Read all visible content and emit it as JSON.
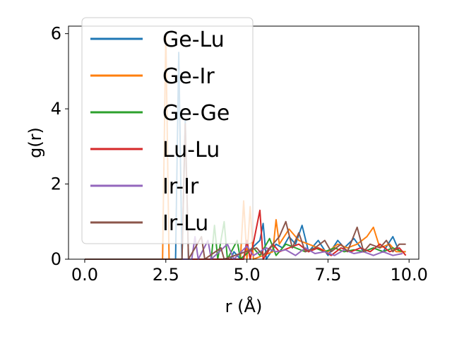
{
  "chart_data": {
    "type": "line",
    "xlabel": "r (Å)",
    "ylabel": "g(r)",
    "xlim": [
      -0.5,
      10.3
    ],
    "ylim": [
      0,
      6.2
    ],
    "xticks": [
      0.0,
      2.5,
      5.0,
      7.5,
      10.0
    ],
    "xtick_labels": [
      "0.0",
      "2.5",
      "5.0",
      "7.5",
      "10.0"
    ],
    "yticks": [
      0,
      2,
      4,
      6
    ],
    "ytick_labels": [
      "0",
      "2",
      "4",
      "6"
    ],
    "grid": false,
    "legend_position": "upper-left",
    "series": [
      {
        "name": "Ge-Lu",
        "color": "#1f77b4",
        "points": [
          [
            0,
            0
          ],
          [
            2.8,
            0
          ],
          [
            2.9,
            5.5
          ],
          [
            3.0,
            0
          ],
          [
            3.1,
            3.7
          ],
          [
            3.2,
            0
          ],
          [
            4.5,
            0
          ],
          [
            4.6,
            0.2
          ],
          [
            4.8,
            0
          ],
          [
            5.4,
            0.5
          ],
          [
            5.5,
            0.95
          ],
          [
            5.6,
            0
          ],
          [
            5.9,
            0.4
          ],
          [
            6.1,
            0.3
          ],
          [
            6.3,
            0.6
          ],
          [
            6.5,
            0.4
          ],
          [
            6.7,
            0.9
          ],
          [
            6.9,
            0.2
          ],
          [
            7.2,
            0.5
          ],
          [
            7.5,
            0.1
          ],
          [
            7.8,
            0.5
          ],
          [
            8.0,
            0.3
          ],
          [
            8.3,
            0.55
          ],
          [
            8.6,
            0.2
          ],
          [
            8.9,
            0.3
          ],
          [
            9.2,
            0.2
          ],
          [
            9.5,
            0.6
          ],
          [
            9.7,
            0.2
          ],
          [
            9.9,
            0.2
          ]
        ]
      },
      {
        "name": "Ge-Ir",
        "color": "#ff7f0e",
        "points": [
          [
            0,
            0
          ],
          [
            2.4,
            0
          ],
          [
            2.5,
            6.0
          ],
          [
            2.6,
            0
          ],
          [
            4.8,
            0
          ],
          [
            4.9,
            1.55
          ],
          [
            5.0,
            0
          ],
          [
            5.1,
            1.4
          ],
          [
            5.2,
            0
          ],
          [
            5.8,
            0.2
          ],
          [
            5.9,
            1.05
          ],
          [
            6.0,
            0.4
          ],
          [
            6.3,
            0.8
          ],
          [
            6.6,
            0.5
          ],
          [
            6.9,
            0.4
          ],
          [
            7.2,
            0.3
          ],
          [
            7.5,
            0.2
          ],
          [
            7.8,
            0.4
          ],
          [
            8.1,
            0.3
          ],
          [
            8.4,
            0.4
          ],
          [
            8.7,
            0.6
          ],
          [
            8.9,
            0.85
          ],
          [
            9.1,
            0.3
          ],
          [
            9.4,
            0.4
          ],
          [
            9.6,
            0.2
          ],
          [
            9.9,
            0.2
          ]
        ]
      },
      {
        "name": "Ge-Ge",
        "color": "#2ca02c",
        "points": [
          [
            0,
            0
          ],
          [
            3.9,
            0
          ],
          [
            4.0,
            0.9
          ],
          [
            4.1,
            0
          ],
          [
            4.3,
            1.0
          ],
          [
            4.4,
            0
          ],
          [
            4.7,
            0.5
          ],
          [
            4.8,
            0
          ],
          [
            5.2,
            0.3
          ],
          [
            5.4,
            0.1
          ],
          [
            5.7,
            0.55
          ],
          [
            5.9,
            0.1
          ],
          [
            6.2,
            0.4
          ],
          [
            6.5,
            0.3
          ],
          [
            6.8,
            0.2
          ],
          [
            7.1,
            0.3
          ],
          [
            7.4,
            0.2
          ],
          [
            7.7,
            0.3
          ],
          [
            8.0,
            0.2
          ],
          [
            8.3,
            0.25
          ],
          [
            8.6,
            0.2
          ],
          [
            8.9,
            0.3
          ],
          [
            9.2,
            0.2
          ],
          [
            9.5,
            0.3
          ],
          [
            9.8,
            0.2
          ]
        ]
      },
      {
        "name": "Lu-Lu",
        "color": "#d62728",
        "points": [
          [
            0,
            0
          ],
          [
            4.9,
            0
          ],
          [
            5.0,
            0.5
          ],
          [
            5.1,
            0
          ],
          [
            5.4,
            1.3
          ],
          [
            5.5,
            0
          ],
          [
            5.8,
            0.4
          ],
          [
            6.0,
            0.2
          ],
          [
            6.3,
            0.3
          ],
          [
            6.6,
            0.4
          ],
          [
            6.9,
            0.2
          ],
          [
            7.2,
            0.3
          ],
          [
            7.6,
            0.1
          ],
          [
            7.9,
            0.3
          ],
          [
            8.2,
            0.2
          ],
          [
            8.5,
            0.3
          ],
          [
            8.8,
            0.2
          ],
          [
            9.1,
            0.4
          ],
          [
            9.4,
            0.2
          ],
          [
            9.7,
            0.3
          ],
          [
            9.9,
            0.1
          ]
        ]
      },
      {
        "name": "Ir-Ir",
        "color": "#9467bd",
        "points": [
          [
            0,
            0
          ],
          [
            3.3,
            0
          ],
          [
            3.4,
            0.6
          ],
          [
            3.5,
            0
          ],
          [
            3.8,
            0.5
          ],
          [
            3.9,
            0
          ],
          [
            4.4,
            0.4
          ],
          [
            4.6,
            0
          ],
          [
            5.0,
            0.35
          ],
          [
            5.2,
            0.1
          ],
          [
            5.6,
            0.3
          ],
          [
            5.9,
            0.2
          ],
          [
            6.2,
            0.25
          ],
          [
            6.5,
            0.1
          ],
          [
            6.8,
            0.3
          ],
          [
            7.1,
            0.15
          ],
          [
            7.4,
            0.2
          ],
          [
            7.7,
            0.1
          ],
          [
            8.0,
            0.25
          ],
          [
            8.3,
            0.15
          ],
          [
            8.6,
            0.2
          ],
          [
            8.9,
            0.1
          ],
          [
            9.2,
            0.2
          ],
          [
            9.5,
            0.1
          ],
          [
            9.8,
            0.15
          ]
        ]
      },
      {
        "name": "Ir-Lu",
        "color": "#8c564b",
        "points": [
          [
            0,
            0
          ],
          [
            3.0,
            0
          ],
          [
            3.1,
            3.6
          ],
          [
            3.2,
            0
          ],
          [
            3.6,
            0.6
          ],
          [
            3.7,
            0
          ],
          [
            4.2,
            0.3
          ],
          [
            4.3,
            0
          ],
          [
            5.3,
            0.3
          ],
          [
            5.5,
            0.1
          ],
          [
            6.0,
            0.6
          ],
          [
            6.2,
            1.0
          ],
          [
            6.4,
            0.3
          ],
          [
            6.6,
            0.7
          ],
          [
            6.8,
            0.2
          ],
          [
            7.1,
            0.3
          ],
          [
            7.4,
            0.5
          ],
          [
            7.6,
            0.2
          ],
          [
            7.9,
            0.4
          ],
          [
            8.1,
            0.2
          ],
          [
            8.4,
            0.85
          ],
          [
            8.6,
            0.2
          ],
          [
            8.8,
            0.4
          ],
          [
            9.1,
            0.3
          ],
          [
            9.3,
            0.5
          ],
          [
            9.5,
            0.2
          ],
          [
            9.7,
            0.4
          ],
          [
            9.9,
            0.4
          ]
        ]
      }
    ]
  }
}
